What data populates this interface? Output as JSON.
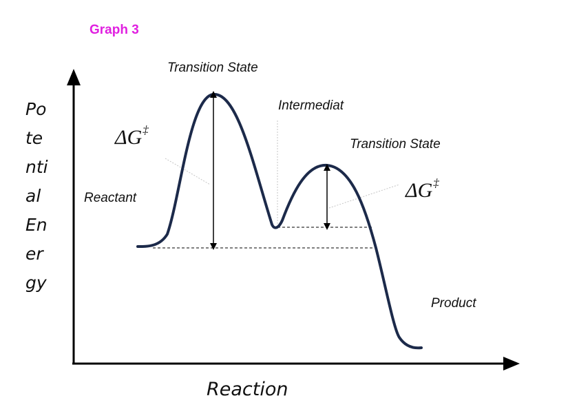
{
  "title": "Graph 3",
  "axes": {
    "y_label_lines": [
      "Po",
      "te",
      "nti",
      "al",
      "En",
      "er",
      "gy"
    ],
    "x_label": "Reaction"
  },
  "labels": {
    "transition_state_1": "Transition State",
    "intermediate": "Intermediat",
    "transition_state_2": "Transition State",
    "reactant": "Reactant",
    "product": "Product"
  },
  "energy_arrows": {
    "symbol": "ΔG",
    "superscript": "‡"
  },
  "colors": {
    "title": "#e020e0",
    "curve": "#1c2a4a",
    "axes": "#000000",
    "leaders": "#bdbdbd"
  }
}
